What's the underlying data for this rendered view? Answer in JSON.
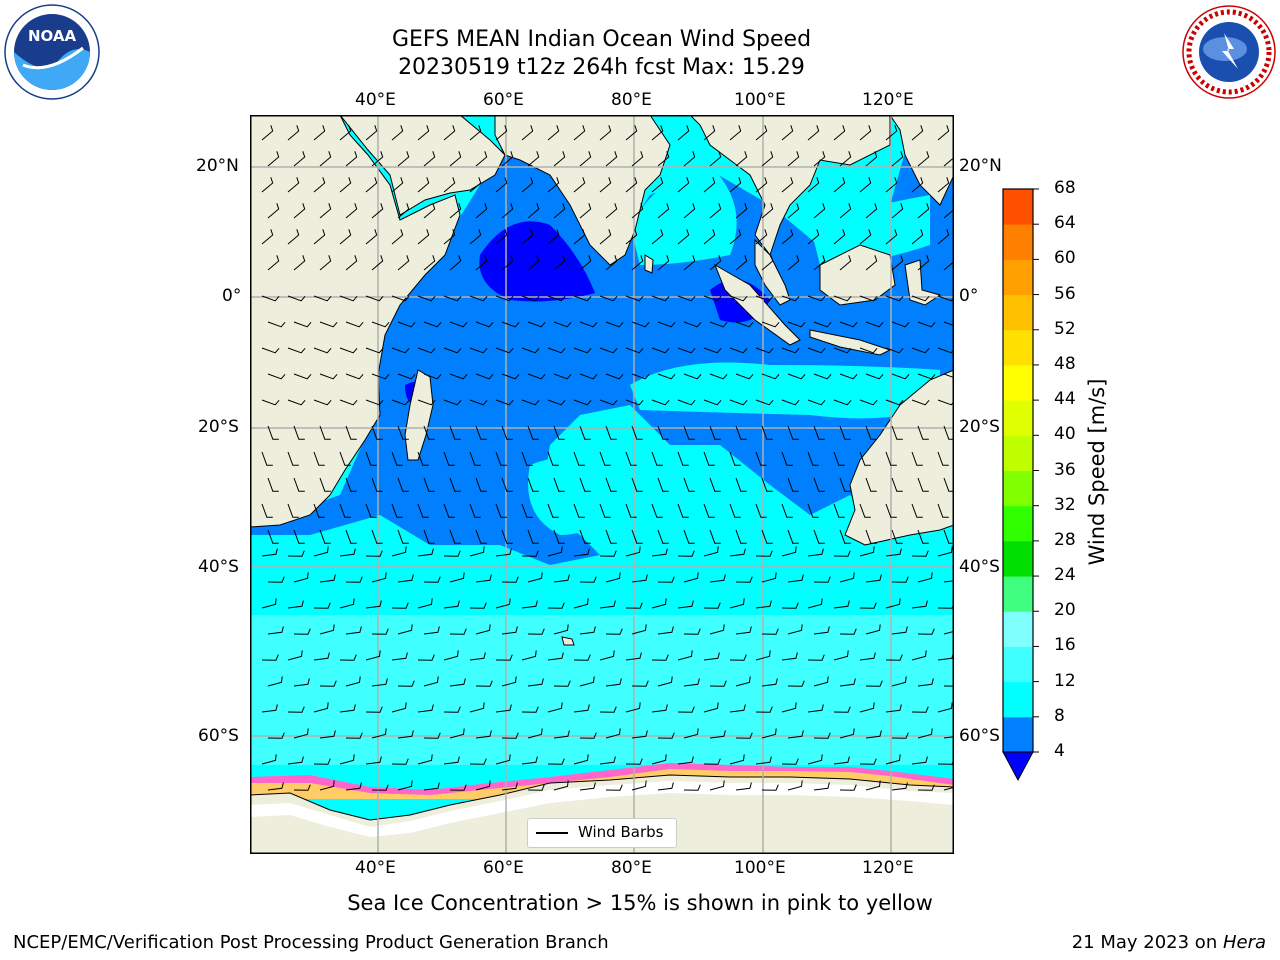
{
  "title": {
    "line1": "GEFS MEAN Indian Ocean Wind Speed",
    "line2": "20230519 t12z 264h fcst   Max: 15.29"
  },
  "axes": {
    "lon_ticks_top": [
      "40°E",
      "60°E",
      "80°E",
      "100°E",
      "120°E"
    ],
    "lon_ticks_bottom": [
      "40°E",
      "60°E",
      "80°E",
      "100°E",
      "120°E"
    ],
    "lat_ticks_left": [
      "20°N",
      "0°",
      "20°S",
      "40°S",
      "60°S"
    ],
    "lat_ticks_right": [
      "20°N",
      "0°",
      "20°S",
      "40°S",
      "60°S"
    ]
  },
  "legend": {
    "label": "Wind Barbs"
  },
  "colorbar": {
    "title": "Wind Speed [m/s]",
    "ticks": [
      "68",
      "64",
      "60",
      "56",
      "52",
      "48",
      "44",
      "40",
      "36",
      "32",
      "28",
      "24",
      "20",
      "16",
      "12",
      "8",
      "4"
    ],
    "colors": [
      "#0000ff",
      "#0080ff",
      "#00ffff",
      "#40ffff",
      "#80ffff",
      "#40ff80",
      "#00e000",
      "#30ff00",
      "#80ff00",
      "#c0ff00",
      "#e0ff00",
      "#ffff00",
      "#ffe000",
      "#ffc000",
      "#ffa000",
      "#ff8000",
      "#ff5000",
      "#ff2000",
      "#ff0000"
    ]
  },
  "caption": "Sea Ice Concentration > 15% is shown in pink to yellow",
  "footer": {
    "left": "NCEP/EMC/Verification Post Processing Product Generation Branch",
    "right_prefix": "21 May 2023 on ",
    "right_host": "Hera"
  },
  "logos": {
    "noaa": "NOAA",
    "nws": "NATIONAL WEATHER SERVICE"
  },
  "map_colors": {
    "land": "#eeeedd",
    "ocean_low": "#0080ff",
    "ocean_mid": "#00ffff",
    "ocean_calm": "#0000ff",
    "ice_white": "#ffffff",
    "ice_pink": "#ff66cc",
    "ice_yellow": "#ffcc66"
  }
}
